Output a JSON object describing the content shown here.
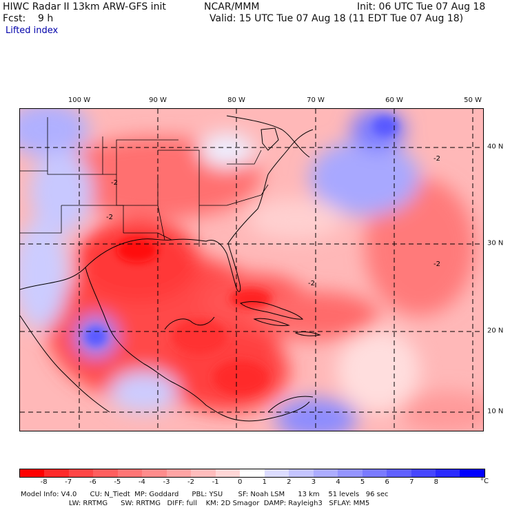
{
  "header": {
    "model": "HIWC Radar II 13km ARW-GFS init",
    "org": "NCAR/MMM",
    "init": "Init: 06 UTC Tue 07 Aug 18",
    "fcst": "Fcst:    9 h",
    "valid": "Valid: 15 UTC Tue 07 Aug 18 (11 EDT Tue 07 Aug 18)",
    "field": "Lifted index"
  },
  "map": {
    "lon_labels": [
      "100 W",
      "90 W",
      "80 W",
      "70 W",
      "60 W",
      "50 W"
    ],
    "lat_labels": [
      "40 N",
      "30 N",
      "20 N",
      "10 N"
    ],
    "contour_labels": [
      "-2",
      "-2",
      "-2",
      "-2",
      "-2"
    ]
  },
  "colorbar": {
    "colors": [
      "#ff0000",
      "#ff2a2a",
      "#ff4545",
      "#ff5e5e",
      "#ff7575",
      "#ff8c8c",
      "#ffa4a4",
      "#ffbcbc",
      "#ffd6d6",
      "#ffffff",
      "#dcdcff",
      "#c4c4ff",
      "#acacff",
      "#9494ff",
      "#7a7aff",
      "#6060ff",
      "#4646ff",
      "#2a2aff",
      "#0000ff"
    ],
    "ticks": [
      "-8",
      "-7",
      "-6",
      "-5",
      "-4",
      "-3",
      "-2",
      "-1",
      "0",
      "1",
      "2",
      "3",
      "4",
      "5",
      "6",
      "7",
      "8"
    ],
    "unit": "°C"
  },
  "footer": {
    "line1": "Model Info: V4.0      CU: N_Tiedt  MP: Goddard      PBL: YSU       SF: Noah LSM      13 km    51 levels   96 sec",
    "line2": "                      LW: RRTMG      SW: RRTMG   DIFF: full    KM: 2D Smagor  DAMP: Rayleigh3   SFLAY: MM5"
  }
}
